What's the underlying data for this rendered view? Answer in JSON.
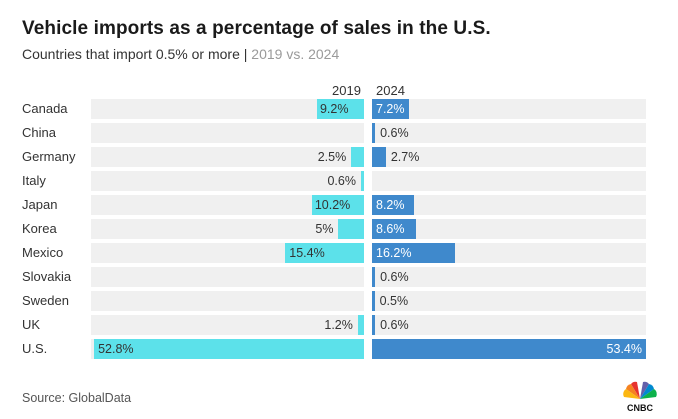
{
  "header": {
    "title": "Vehicle imports as a percentage of sales in the U.S.",
    "subtitle_main": "Countries that import 0.5% or more |",
    "subtitle_muted": "2019 vs. 2024"
  },
  "footer": {
    "source": "Source: GlobalData",
    "logo_text": "CNBC"
  },
  "colors": {
    "series_2019": "#5ce1ea",
    "series_2024": "#3f89cc",
    "track": "#f0f0f0"
  },
  "chart_data": {
    "type": "bar",
    "title": "Vehicle imports as a percentage of sales in the U.S.",
    "subtitle": "Countries that import 0.5% or more | 2019 vs. 2024",
    "categories": [
      "Canada",
      "China",
      "Germany",
      "Italy",
      "Japan",
      "Korea",
      "Mexico",
      "Slovakia",
      "Sweden",
      "UK",
      "U.S."
    ],
    "series": [
      {
        "name": "2019",
        "values": [
          9.2,
          null,
          2.5,
          0.6,
          10.2,
          5,
          15.4,
          null,
          null,
          1.2,
          52.8
        ],
        "labels": [
          "9.2%",
          "",
          "2.5%",
          "0.6%",
          "10.2%",
          "5%",
          "15.4%",
          "",
          "",
          "1.2%",
          "52.8%"
        ]
      },
      {
        "name": "2024",
        "values": [
          7.2,
          0.6,
          2.7,
          null,
          8.2,
          8.6,
          16.2,
          0.6,
          0.5,
          0.6,
          53.4
        ],
        "labels": [
          "7.2%",
          "0.6%",
          "2.7%",
          "",
          "8.2%",
          "8.6%",
          "16.2%",
          "0.6%",
          "0.5%",
          "0.6%",
          "53.4%"
        ]
      }
    ],
    "xlim": [
      0,
      53.4
    ],
    "orientation": "butterfly-horizontal"
  }
}
